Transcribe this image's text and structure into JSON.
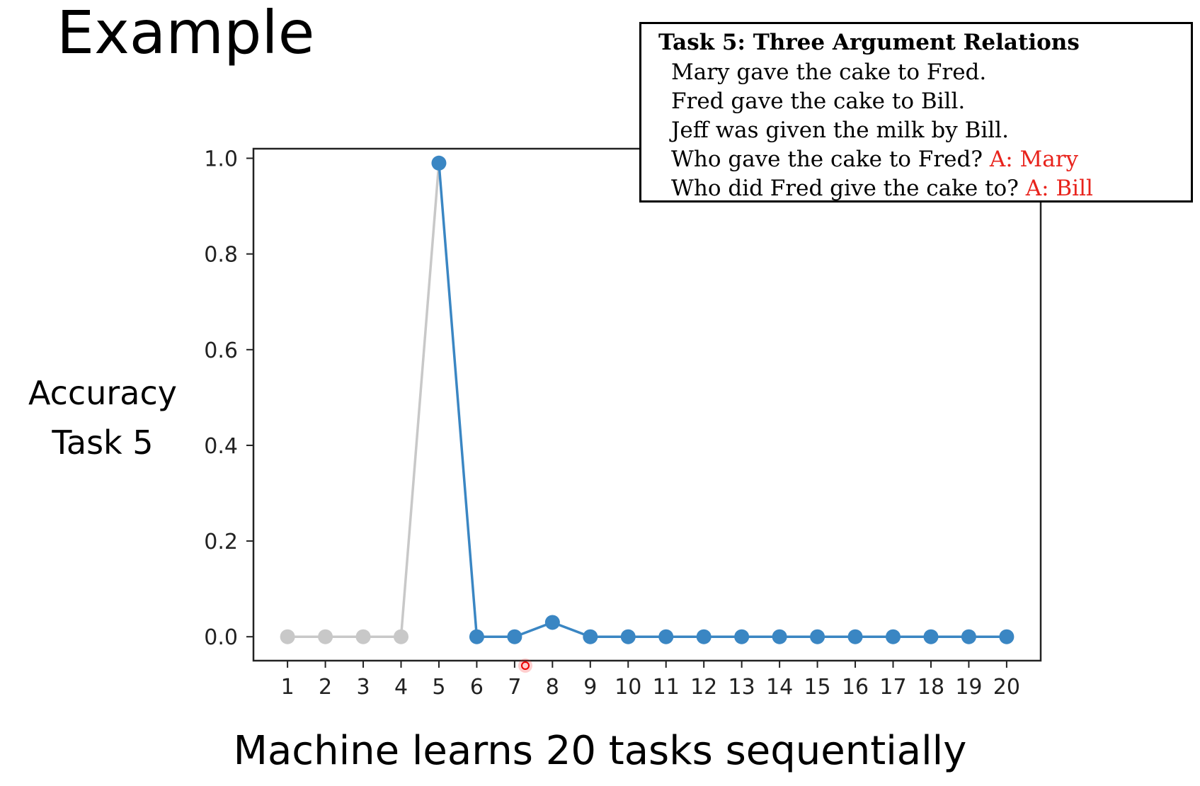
{
  "slide": {
    "title": "Example",
    "ylabel_lines": [
      "Accuracy",
      "Task 5"
    ],
    "caption": "Machine learns 20 tasks sequentially"
  },
  "task_box": {
    "title": "Task 5: Three Argument Relations",
    "lines": [
      {
        "text": "Mary gave the cake to Fred.",
        "answer": ""
      },
      {
        "text": "Fred gave the cake to Bill.",
        "answer": ""
      },
      {
        "text": "Jeff was given the milk by Bill.",
        "answer": ""
      },
      {
        "text": "Who gave the cake to Fred?",
        "answer": "A: Mary"
      },
      {
        "text": "Who did Fred give the cake to?",
        "answer": "A: Bill"
      }
    ],
    "answer_color": "#e8231c"
  },
  "chart_data": {
    "type": "line",
    "x": [
      1,
      2,
      3,
      4,
      5,
      6,
      7,
      8,
      9,
      10,
      11,
      12,
      13,
      14,
      15,
      16,
      17,
      18,
      19,
      20
    ],
    "xticks": [
      "1",
      "2",
      "3",
      "4",
      "5",
      "6",
      "7",
      "8",
      "9",
      "10",
      "11",
      "12",
      "13",
      "14",
      "15",
      "16",
      "17",
      "18",
      "19",
      "20"
    ],
    "yticks": [
      "0.0",
      "0.2",
      "0.4",
      "0.6",
      "0.8",
      "1.0"
    ],
    "ylim": [
      -0.05,
      1.02
    ],
    "xlim": [
      0.1,
      20.9
    ],
    "series": [
      {
        "color": "#c8c8c8",
        "x": [
          1,
          2,
          3,
          4,
          5
        ],
        "values": [
          0.0,
          0.0,
          0.0,
          0.0,
          0.99
        ],
        "marker_last": false
      },
      {
        "color": "#3a86c3",
        "x": [
          5,
          6,
          7,
          8,
          9,
          10,
          11,
          12,
          13,
          14,
          15,
          16,
          17,
          18,
          19,
          20
        ],
        "values": [
          0.99,
          0.0,
          0.0,
          0.03,
          0.0,
          0.0,
          0.0,
          0.0,
          0.0,
          0.0,
          0.0,
          0.0,
          0.0,
          0.0,
          0.0,
          0.0
        ],
        "marker_last": true
      }
    ],
    "grid": false,
    "legend": "none"
  }
}
